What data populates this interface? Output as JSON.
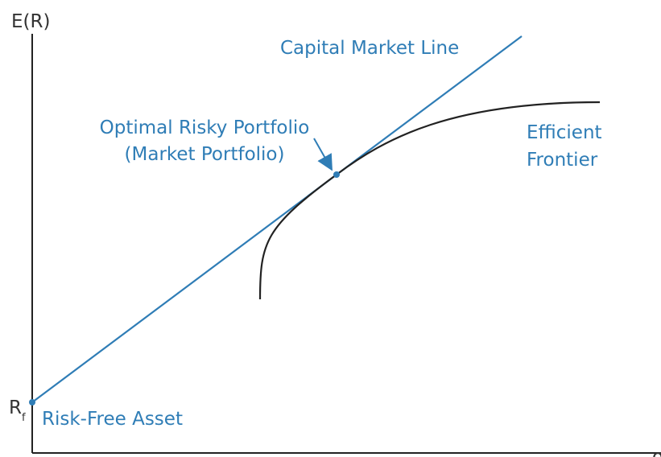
{
  "axes": {
    "y_label": "E(R)",
    "x_label": "σ"
  },
  "lines": {
    "cml": "Capital Market Line",
    "frontier": [
      "Efficient",
      "Frontier"
    ]
  },
  "points": {
    "optimal": [
      "Optimal Risky Portfolio",
      "(Market Portfolio)"
    ],
    "risk_free": {
      "symbol": "R",
      "subscript": "f",
      "label": "Risk-Free Asset"
    }
  }
}
